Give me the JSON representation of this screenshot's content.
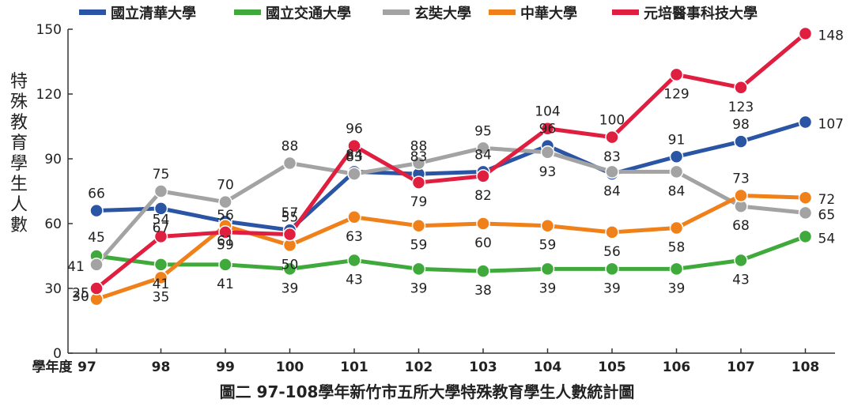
{
  "chart_data": {
    "type": "line",
    "title": "圖二 97-108學年新竹市五所大學特殊教育學生人數統計圖",
    "xlabel": "學年度",
    "ylabel": "特殊教育學生人數",
    "ylim": [
      0,
      150
    ],
    "yticks": [
      0,
      30,
      60,
      90,
      120,
      150
    ],
    "categories": [
      "97",
      "98",
      "99",
      "100",
      "101",
      "102",
      "103",
      "104",
      "105",
      "106",
      "107",
      "108"
    ],
    "legend_position": "top",
    "grid": false,
    "series": [
      {
        "name": "國立清華大學",
        "color": "#2a55a5",
        "values": [
          66,
          67,
          61,
          57,
          84,
          83,
          84,
          96,
          83,
          91,
          98,
          107
        ]
      },
      {
        "name": "國立交通大學",
        "color": "#3fa93c",
        "values": [
          45,
          41,
          41,
          39,
          43,
          39,
          38,
          39,
          39,
          39,
          43,
          54
        ]
      },
      {
        "name": "玄奘大學",
        "color": "#a3a3a3",
        "values": [
          41,
          75,
          70,
          88,
          83,
          88,
          95,
          93,
          84,
          84,
          68,
          65
        ]
      },
      {
        "name": "中華大學",
        "color": "#f08019",
        "values": [
          25,
          35,
          59,
          50,
          63,
          59,
          60,
          59,
          56,
          58,
          73,
          72
        ]
      },
      {
        "name": "元培醫事科技大學",
        "color": "#e01e3f",
        "values": [
          30,
          54,
          56,
          55,
          96,
          79,
          82,
          104,
          100,
          129,
          123,
          148
        ]
      }
    ]
  }
}
